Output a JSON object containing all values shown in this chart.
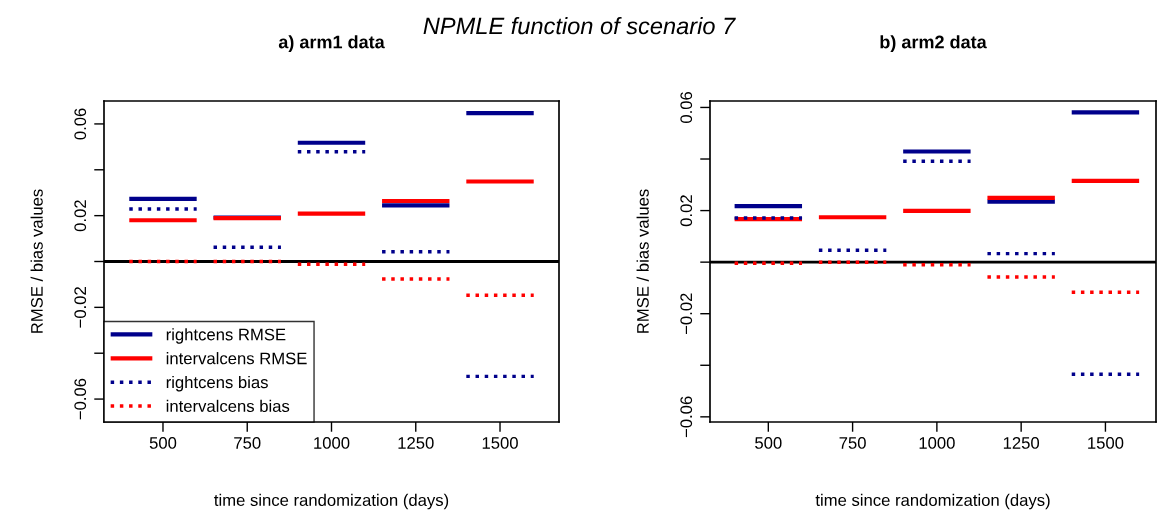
{
  "chart_data": [
    {
      "type": "line",
      "title": "a) arm1 data",
      "xlabel": "time since randomization (days)",
      "ylabel": "RMSE / bias values",
      "annotations": [
        "NPMLE function of scenario 7"
      ],
      "x": [
        400,
        600,
        625,
        650,
        850,
        875,
        900,
        1100,
        1125,
        1150,
        1350,
        1375,
        1400,
        1600
      ],
      "series": [
        {
          "name": "rightcens RMSE",
          "color": "#00008b",
          "line_style": "solid",
          "values": [
            0.0273,
            0.0273,
            null,
            0.0192,
            0.0192,
            null,
            0.0518,
            0.0518,
            null,
            0.0245,
            0.0245,
            null,
            0.0647,
            0.0647
          ]
        },
        {
          "name": "intervalcens RMSE",
          "color": "#ff0000",
          "line_style": "solid",
          "values": [
            0.018,
            0.018,
            null,
            0.0189,
            0.0189,
            null,
            0.0209,
            0.0209,
            null,
            0.0264,
            0.0264,
            null,
            0.0349,
            0.0349
          ]
        },
        {
          "name": "rightcens bias",
          "color": "#00008b",
          "line_style": "dotted",
          "values": [
            0.0229,
            0.0229,
            null,
            0.0062,
            0.0062,
            null,
            0.0479,
            0.0479,
            null,
            0.0043,
            0.0043,
            null,
            -0.0501,
            -0.0501
          ]
        },
        {
          "name": "intervalcens bias",
          "color": "#ff0000",
          "line_style": "dotted",
          "values": [
            0.0,
            0.0,
            null,
            0.0,
            0.0,
            null,
            -0.0012,
            -0.0012,
            null,
            -0.0076,
            -0.0076,
            null,
            -0.0147,
            -0.0147
          ]
        }
      ],
      "xlim": [
        325,
        1675
      ],
      "ylim": [
        -0.07,
        0.07
      ],
      "xticks": [
        500,
        750,
        1000,
        1250,
        1500
      ],
      "yticks": [
        {
          "value": -0.06,
          "label": "−0.06"
        },
        {
          "value": -0.04,
          "label": null
        },
        {
          "value": -0.02,
          "label": "−0.02"
        },
        {
          "value": 0,
          "label": null
        },
        {
          "value": 0.02,
          "label": "0.02"
        },
        {
          "value": 0.04,
          "label": null
        },
        {
          "value": 0.06,
          "label": "0.06"
        }
      ],
      "ref_lines": [
        {
          "axis": "y",
          "value": 0,
          "color": "#000000"
        }
      ],
      "grid": false,
      "legend": "bottom left"
    },
    {
      "type": "line",
      "title": "b) arm2 data",
      "xlabel": "time since randomization (days)",
      "ylabel": "RMSE / bias values",
      "x": [
        400,
        600,
        625,
        650,
        850,
        875,
        900,
        1100,
        1125,
        1150,
        1350,
        1375,
        1400,
        1600
      ],
      "series": [
        {
          "color": "#00008b",
          "line_style": "solid",
          "values": [
            0.0217,
            0.0217,
            null,
            null,
            null,
            null,
            0.0429,
            0.0429,
            null,
            0.0235,
            0.0235,
            null,
            0.0581,
            0.0581
          ]
        },
        {
          "color": "#ff0000",
          "line_style": "solid",
          "values": [
            0.0167,
            0.0167,
            null,
            0.0174,
            0.0174,
            null,
            0.0199,
            0.0199,
            null,
            0.0249,
            0.0249,
            null,
            0.0315,
            0.0315
          ]
        },
        {
          "color": "#00008b",
          "line_style": "dotted",
          "values": [
            0.0171,
            0.0171,
            null,
            0.0046,
            0.0046,
            null,
            0.0391,
            0.0391,
            null,
            0.0033,
            0.0033,
            null,
            -0.0435,
            -0.0435
          ]
        },
        {
          "color": "#ff0000",
          "line_style": "dotted",
          "values": [
            -0.0004,
            -0.0004,
            null,
            0.0,
            0.0,
            null,
            -0.001,
            -0.001,
            null,
            -0.0058,
            -0.0058,
            null,
            -0.0117,
            -0.0117
          ]
        }
      ],
      "xlim": [
        327,
        1650
      ],
      "ylim": [
        -0.062,
        0.0625
      ],
      "xticks": [
        500,
        750,
        1000,
        1250,
        1500
      ],
      "yticks": [
        {
          "value": -0.06,
          "label": "−0.06"
        },
        {
          "value": -0.04,
          "label": null
        },
        {
          "value": -0.02,
          "label": "−0.02"
        },
        {
          "value": 0,
          "label": null
        },
        {
          "value": 0.02,
          "label": "0.02"
        },
        {
          "value": 0.04,
          "label": null
        },
        {
          "value": 0.06,
          "label": "0.06"
        }
      ],
      "ref_lines": [
        {
          "axis": "y",
          "value": 0,
          "color": "#000000"
        }
      ],
      "grid": false,
      "legend": false
    }
  ]
}
